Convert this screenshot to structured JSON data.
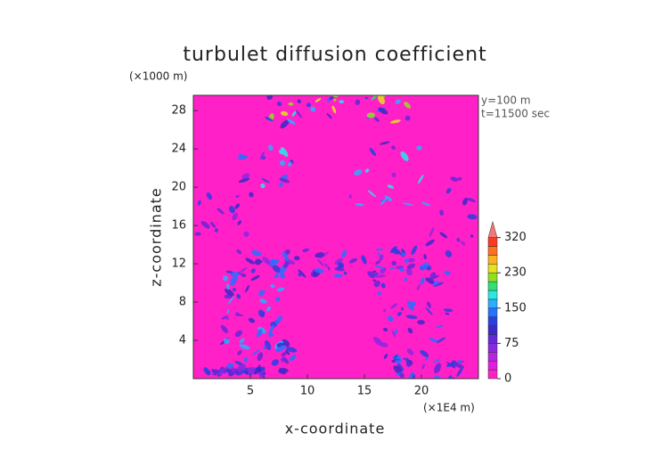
{
  "chart_data": {
    "type": "heatmap",
    "title": "turbulet diffusion coefficient",
    "y_unit_label": "(×1000 m)",
    "x_unit_label": "(×1E4 m)",
    "annotations": [
      "y=100 m",
      "t=11500 sec"
    ],
    "xlabel": "x-coordinate",
    "ylabel": "z-coordinate",
    "xlim": [
      0,
      25
    ],
    "ylim": [
      0,
      29.6
    ],
    "xticks": [
      5,
      10,
      15,
      20
    ],
    "yticks": [
      4,
      8,
      12,
      16,
      20,
      24,
      28
    ],
    "colorbar": {
      "levels": [
        0,
        19,
        38,
        56,
        75,
        94,
        113,
        131,
        150,
        170,
        190,
        210,
        230,
        252,
        275,
        298,
        320
      ],
      "colors": [
        "#ff20c8",
        "#e020e0",
        "#b428e0",
        "#8c28e0",
        "#6428d8",
        "#3c28c8",
        "#2840e0",
        "#2870ff",
        "#28b0ff",
        "#28e8e8",
        "#30e070",
        "#90e020",
        "#e8e020",
        "#ffb020",
        "#ff7020",
        "#ff3820"
      ],
      "over_color": "#f07878",
      "ticks": [
        0,
        75,
        150,
        230,
        320
      ]
    }
  }
}
